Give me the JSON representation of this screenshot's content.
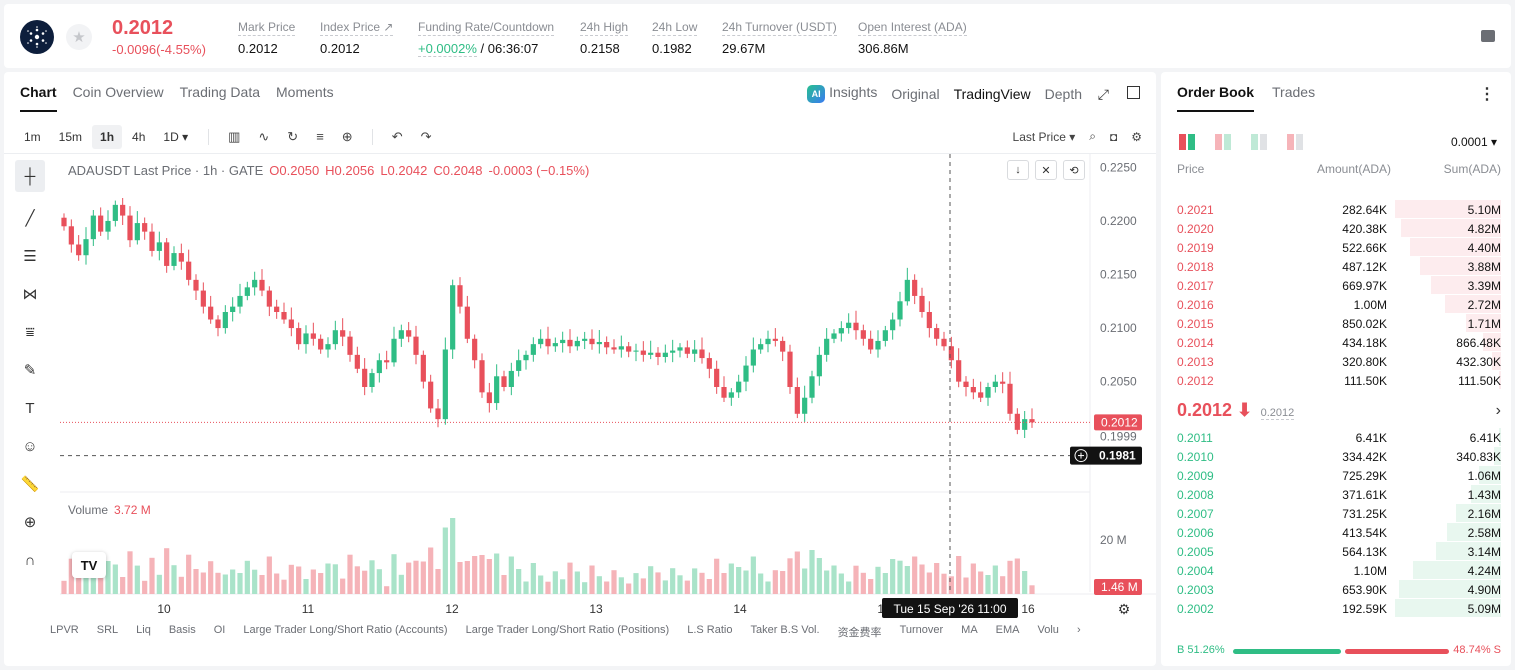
{
  "header": {
    "last_price": "0.2012",
    "change": "-0.0096(-4.55%)",
    "stats": [
      {
        "label": "Mark Price",
        "value": "0.2012"
      },
      {
        "label": "Index Price ↗",
        "value": "0.2012"
      },
      {
        "label": "Funding Rate/Countdown",
        "value_green": "+0.0002%",
        "value": " / 06:36:07"
      },
      {
        "label": "24h High",
        "value": "0.2158"
      },
      {
        "label": "24h Low",
        "value": "0.1982"
      },
      {
        "label": "24h Turnover (USDT)",
        "value": "29.67M"
      },
      {
        "label": "Open Interest (ADA)",
        "value": "306.86M"
      }
    ]
  },
  "chart_panel": {
    "tabs": [
      "Chart",
      "Coin Overview",
      "Trading Data",
      "Moments"
    ],
    "view_tabs": [
      "Insights",
      "Original",
      "TradingView",
      "Depth"
    ],
    "timeframes": [
      "1m",
      "15m",
      "1h",
      "4h",
      "1D ▾"
    ],
    "price_type": "Last Price ▾",
    "legend": {
      "symbol": "ADAUSDT Last Price · 1h · GATE",
      "open": "O0.2050",
      "high": "H0.2056",
      "low": "L0.2042",
      "close": "C0.2048",
      "chg": "-0.0003 (−0.15%)"
    },
    "volume_label": "Volume",
    "volume_value": "3.72 M",
    "crosshair_label": "Tue 15 Sep '26   11:00",
    "indicators": [
      "LPVR",
      "SRL",
      "Liq",
      "Basis",
      "OI",
      "Large Trader Long/Short Ratio (Accounts)",
      "Large Trader Long/Short Ratio (Positions)",
      "L.S Ratio",
      "Taker B.S Vol.",
      "资金费率",
      "Turnover",
      "MA",
      "EMA",
      "Volu"
    ]
  },
  "chart_data": {
    "type": "candlestick",
    "symbol": "ADAUSDT",
    "interval": "1h",
    "x_ticks": [
      "10",
      "11",
      "12",
      "13",
      "14",
      "15",
      "16"
    ],
    "y_ticks": [
      "0.2250",
      "0.2200",
      "0.2150",
      "0.2100",
      "0.2050",
      "0.1999"
    ],
    "ylim": [
      0.1975,
      0.2255
    ],
    "price_marker": "0.2012",
    "crosshair_price": "0.1981",
    "volume_tick": "20 M",
    "volume_marker": "1.46 M",
    "colors": {
      "up": "#2fbd85",
      "down": "#e8505b"
    },
    "closes": [
      0.2195,
      0.2178,
      0.2168,
      0.2183,
      0.2205,
      0.219,
      0.22,
      0.2215,
      0.2205,
      0.2182,
      0.2198,
      0.219,
      0.2172,
      0.218,
      0.2158,
      0.217,
      0.2162,
      0.2145,
      0.2135,
      0.212,
      0.2108,
      0.21,
      0.2115,
      0.212,
      0.213,
      0.2138,
      0.2145,
      0.2135,
      0.212,
      0.2115,
      0.2108,
      0.21,
      0.2085,
      0.2095,
      0.209,
      0.208,
      0.2085,
      0.2098,
      0.2092,
      0.2075,
      0.2062,
      0.2045,
      0.2058,
      0.207,
      0.2068,
      0.209,
      0.2098,
      0.2092,
      0.2075,
      0.205,
      0.2025,
      0.2015,
      0.208,
      0.214,
      0.212,
      0.209,
      0.207,
      0.204,
      0.203,
      0.2055,
      0.2045,
      0.206,
      0.207,
      0.2075,
      0.2085,
      0.209,
      0.2083,
      0.2086,
      0.2089,
      0.2083,
      0.2088,
      0.209,
      0.2085,
      0.2087,
      0.2082,
      0.208,
      0.2083,
      0.2078,
      0.2079,
      0.2075,
      0.2077,
      0.2073,
      0.2077,
      0.2079,
      0.2082,
      0.2076,
      0.208,
      0.2072,
      0.2062,
      0.2045,
      0.2035,
      0.204,
      0.205,
      0.2065,
      0.208,
      0.2085,
      0.209,
      0.2088,
      0.2078,
      0.2045,
      0.202,
      0.2035,
      0.2055,
      0.2075,
      0.209,
      0.2095,
      0.21,
      0.2105,
      0.2098,
      0.209,
      0.208,
      0.2088,
      0.2098,
      0.2108,
      0.2125,
      0.2145,
      0.213,
      0.2115,
      0.21,
      0.209,
      0.2083,
      0.207,
      0.205,
      0.2045,
      0.204,
      0.2035,
      0.2045,
      0.205,
      0.2048,
      0.202,
      0.2005,
      0.2015,
      0.2012
    ]
  },
  "order_book": {
    "tabs": [
      "Order Book",
      "Trades"
    ],
    "tick": "0.0001 ▾",
    "headers": {
      "price": "Price",
      "amount": "Amount(ADA)",
      "sum": "Sum(ADA)"
    },
    "asks": [
      {
        "price": "0.2021",
        "amount": "282.64K",
        "sum": "5.10M",
        "depth": 1.0
      },
      {
        "price": "0.2020",
        "amount": "420.38K",
        "sum": "4.82M",
        "depth": 0.945
      },
      {
        "price": "0.2019",
        "amount": "522.66K",
        "sum": "4.40M",
        "depth": 0.863
      },
      {
        "price": "0.2018",
        "amount": "487.12K",
        "sum": "3.88M",
        "depth": 0.761
      },
      {
        "price": "0.2017",
        "amount": "669.97K",
        "sum": "3.39M",
        "depth": 0.665
      },
      {
        "price": "0.2016",
        "amount": "1.00M",
        "sum": "2.72M",
        "depth": 0.533
      },
      {
        "price": "0.2015",
        "amount": "850.02K",
        "sum": "1.71M",
        "depth": 0.335
      },
      {
        "price": "0.2014",
        "amount": "434.18K",
        "sum": "866.48K",
        "depth": 0.17
      },
      {
        "price": "0.2013",
        "amount": "320.80K",
        "sum": "432.30K",
        "depth": 0.085
      },
      {
        "price": "0.2012",
        "amount": "111.50K",
        "sum": "111.50K",
        "depth": 0.022
      }
    ],
    "mid_price": "0.2012 ⬇",
    "mark_price": "0.2012",
    "bids": [
      {
        "price": "0.2011",
        "amount": "6.41K",
        "sum": "6.41K",
        "depth": 0.001
      },
      {
        "price": "0.2010",
        "amount": "334.42K",
        "sum": "340.83K",
        "depth": 0.067
      },
      {
        "price": "0.2009",
        "amount": "725.29K",
        "sum": "1.06M",
        "depth": 0.208
      },
      {
        "price": "0.2008",
        "amount": "371.61K",
        "sum": "1.43M",
        "depth": 0.281
      },
      {
        "price": "0.2007",
        "amount": "731.25K",
        "sum": "2.16M",
        "depth": 0.424
      },
      {
        "price": "0.2006",
        "amount": "413.54K",
        "sum": "2.58M",
        "depth": 0.507
      },
      {
        "price": "0.2005",
        "amount": "564.13K",
        "sum": "3.14M",
        "depth": 0.617
      },
      {
        "price": "0.2004",
        "amount": "1.10M",
        "sum": "4.24M",
        "depth": 0.833
      },
      {
        "price": "0.2003",
        "amount": "653.90K",
        "sum": "4.90M",
        "depth": 0.963
      },
      {
        "price": "0.2002",
        "amount": "192.59K",
        "sum": "5.09M",
        "depth": 1.0
      }
    ],
    "buy_ratio": "B 51.26%",
    "sell_ratio": "48.74% S"
  }
}
